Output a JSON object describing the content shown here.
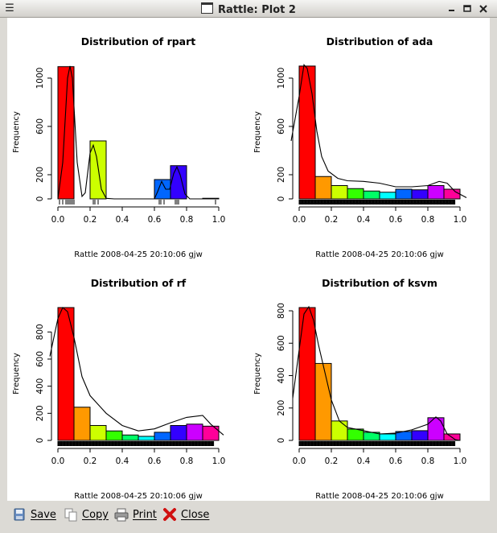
{
  "window": {
    "title": "Rattle: Plot 2",
    "menu_icon": "hamburger-icon"
  },
  "toolbar": {
    "save_label": "Save",
    "copy_label": "Copy",
    "print_label": "Print",
    "close_label": "Close"
  },
  "chart_data": [
    {
      "type": "bar",
      "title": "Distribution of rpart",
      "ylabel": "Frequency",
      "xlabel": "",
      "footer": "Rattle 2008-04-25 20:10:06 gjw",
      "x_ticks": [
        "0.0",
        "0.2",
        "0.4",
        "0.6",
        "0.8",
        "1.0"
      ],
      "y_ticks": [
        "0",
        "200",
        "600",
        "1000"
      ],
      "ylim": [
        0,
        1100
      ],
      "bins": [
        [
          0.0,
          0.1
        ],
        [
          0.1,
          0.2
        ],
        [
          0.2,
          0.3
        ],
        [
          0.3,
          0.4
        ],
        [
          0.4,
          0.5
        ],
        [
          0.5,
          0.6
        ],
        [
          0.6,
          0.7
        ],
        [
          0.7,
          0.8
        ],
        [
          0.8,
          0.9
        ],
        [
          0.9,
          1.0
        ]
      ],
      "values": [
        1095,
        0,
        480,
        0,
        0,
        0,
        160,
        275,
        0,
        5
      ],
      "colors": [
        "#ff0000",
        "#ff9900",
        "#ccff00",
        "#33ff00",
        "#00ff66",
        "#00ffff",
        "#0066ff",
        "#3300ff",
        "#cc00ff",
        "#ff0099"
      ],
      "density": [
        [
          0.0,
          0
        ],
        [
          0.03,
          300
        ],
        [
          0.06,
          1000
        ],
        [
          0.075,
          1100
        ],
        [
          0.09,
          1000
        ],
        [
          0.12,
          300
        ],
        [
          0.15,
          20
        ],
        [
          0.17,
          50
        ],
        [
          0.2,
          380
        ],
        [
          0.22,
          445
        ],
        [
          0.24,
          350
        ],
        [
          0.27,
          80
        ],
        [
          0.3,
          5
        ],
        [
          0.35,
          0
        ],
        [
          0.6,
          0
        ],
        [
          0.62,
          60
        ],
        [
          0.645,
          145
        ],
        [
          0.67,
          80
        ],
        [
          0.695,
          80
        ],
        [
          0.72,
          210
        ],
        [
          0.74,
          265
        ],
        [
          0.76,
          200
        ],
        [
          0.79,
          40
        ],
        [
          0.82,
          0
        ],
        [
          0.95,
          0
        ],
        [
          1.0,
          0
        ]
      ],
      "rug": [
        0.01,
        0.03,
        0.05,
        0.06,
        0.07,
        0.08,
        0.09,
        0.1,
        0.22,
        0.23,
        0.25,
        0.63,
        0.64,
        0.66,
        0.73,
        0.74,
        0.75,
        0.98
      ]
    },
    {
      "type": "bar",
      "title": "Distribution of ada",
      "ylabel": "Frequency",
      "xlabel": "",
      "footer": "Rattle 2008-04-25 20:10:06 gjw",
      "x_ticks": [
        "0.0",
        "0.2",
        "0.4",
        "0.6",
        "0.8",
        "1.0"
      ],
      "y_ticks": [
        "0",
        "200",
        "600",
        "1000"
      ],
      "ylim": [
        0,
        1100
      ],
      "bins": [
        [
          0.0,
          0.1
        ],
        [
          0.1,
          0.2
        ],
        [
          0.2,
          0.3
        ],
        [
          0.3,
          0.4
        ],
        [
          0.4,
          0.5
        ],
        [
          0.5,
          0.6
        ],
        [
          0.6,
          0.7
        ],
        [
          0.7,
          0.8
        ],
        [
          0.8,
          0.9
        ],
        [
          0.9,
          1.0
        ]
      ],
      "values": [
        1100,
        185,
        110,
        85,
        65,
        55,
        80,
        75,
        110,
        80
      ],
      "colors": [
        "#ff0000",
        "#ff9900",
        "#ccff00",
        "#33ff00",
        "#00ff66",
        "#00ffff",
        "#0066ff",
        "#3300ff",
        "#cc00ff",
        "#ff0099"
      ],
      "density": [
        [
          -0.05,
          480
        ],
        [
          0.0,
          850
        ],
        [
          0.03,
          1110
        ],
        [
          0.05,
          1080
        ],
        [
          0.08,
          870
        ],
        [
          0.11,
          560
        ],
        [
          0.14,
          350
        ],
        [
          0.18,
          230
        ],
        [
          0.24,
          170
        ],
        [
          0.3,
          150
        ],
        [
          0.4,
          145
        ],
        [
          0.5,
          130
        ],
        [
          0.6,
          100
        ],
        [
          0.7,
          100
        ],
        [
          0.8,
          110
        ],
        [
          0.87,
          145
        ],
        [
          0.92,
          130
        ],
        [
          0.97,
          60
        ],
        [
          1.04,
          10
        ]
      ],
      "rug": "dense"
    },
    {
      "type": "bar",
      "title": "Distribution of rf",
      "ylabel": "Frequency",
      "xlabel": "",
      "footer": "Rattle 2008-04-25 20:10:06 gjw",
      "x_ticks": [
        "0.0",
        "0.2",
        "0.4",
        "0.6",
        "0.8",
        "1.0"
      ],
      "y_ticks": [
        "0",
        "200",
        "400",
        "600",
        "800"
      ],
      "ylim": [
        0,
        980
      ],
      "bins": [
        [
          0.0,
          0.1
        ],
        [
          0.1,
          0.2
        ],
        [
          0.2,
          0.3
        ],
        [
          0.3,
          0.4
        ],
        [
          0.4,
          0.5
        ],
        [
          0.5,
          0.6
        ],
        [
          0.6,
          0.7
        ],
        [
          0.7,
          0.8
        ],
        [
          0.8,
          0.9
        ],
        [
          0.9,
          1.0
        ]
      ],
      "values": [
        980,
        245,
        110,
        70,
        40,
        30,
        60,
        110,
        120,
        105
      ],
      "colors": [
        "#ff0000",
        "#ff9900",
        "#ccff00",
        "#33ff00",
        "#00ff66",
        "#00ffff",
        "#0066ff",
        "#3300ff",
        "#cc00ff",
        "#ff0099"
      ],
      "density": [
        [
          -0.05,
          620
        ],
        [
          0.0,
          900
        ],
        [
          0.03,
          980
        ],
        [
          0.06,
          950
        ],
        [
          0.1,
          760
        ],
        [
          0.15,
          470
        ],
        [
          0.2,
          330
        ],
        [
          0.3,
          200
        ],
        [
          0.4,
          110
        ],
        [
          0.5,
          70
        ],
        [
          0.6,
          85
        ],
        [
          0.7,
          130
        ],
        [
          0.8,
          170
        ],
        [
          0.9,
          185
        ],
        [
          0.95,
          120
        ],
        [
          1.03,
          40
        ]
      ],
      "rug": "dense"
    },
    {
      "type": "bar",
      "title": "Distribution of ksvm",
      "ylabel": "Frequency",
      "xlabel": "",
      "footer": "Rattle 2008-04-25 20:10:06 gjw",
      "x_ticks": [
        "0.0",
        "0.2",
        "0.4",
        "0.6",
        "0.8",
        "1.0"
      ],
      "y_ticks": [
        "0",
        "200",
        "400",
        "600",
        "800"
      ],
      "ylim": [
        0,
        820
      ],
      "bins": [
        [
          0.0,
          0.1
        ],
        [
          0.1,
          0.2
        ],
        [
          0.2,
          0.3
        ],
        [
          0.3,
          0.4
        ],
        [
          0.4,
          0.5
        ],
        [
          0.5,
          0.6
        ],
        [
          0.6,
          0.7
        ],
        [
          0.7,
          0.8
        ],
        [
          0.8,
          0.9
        ],
        [
          0.9,
          1.0
        ]
      ],
      "values": [
        820,
        475,
        120,
        70,
        50,
        40,
        55,
        60,
        140,
        40
      ],
      "colors": [
        "#ff0000",
        "#ff9900",
        "#ccff00",
        "#33ff00",
        "#00ff66",
        "#00ffff",
        "#0066ff",
        "#3300ff",
        "#cc00ff",
        "#ff0099"
      ],
      "density": [
        [
          -0.04,
          260
        ],
        [
          0.0,
          560
        ],
        [
          0.03,
          780
        ],
        [
          0.06,
          825
        ],
        [
          0.09,
          740
        ],
        [
          0.12,
          590
        ],
        [
          0.16,
          420
        ],
        [
          0.2,
          250
        ],
        [
          0.25,
          120
        ],
        [
          0.3,
          80
        ],
        [
          0.4,
          60
        ],
        [
          0.5,
          40
        ],
        [
          0.6,
          45
        ],
        [
          0.7,
          65
        ],
        [
          0.8,
          100
        ],
        [
          0.85,
          145
        ],
        [
          0.88,
          120
        ],
        [
          0.92,
          40
        ],
        [
          0.97,
          5
        ],
        [
          1.0,
          0
        ]
      ],
      "rug": "dense"
    }
  ]
}
